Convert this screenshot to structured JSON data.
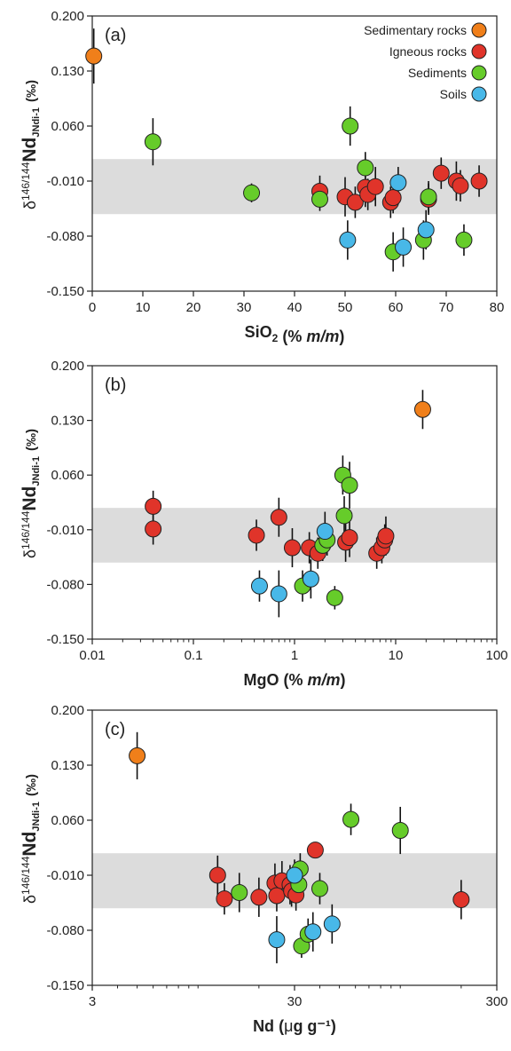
{
  "colors": {
    "sedimentary_rocks": "#f07f1a",
    "igneous_rocks": "#e0342a",
    "sediments": "#66cc2a",
    "soils": "#48b8e8",
    "band": "#dcdcdc"
  },
  "y_title": {
    "prefix": "δ",
    "sup": "146/144",
    "main": "Nd",
    "sub": "JNdi-1",
    "unit": "(‰)"
  },
  "legend": [
    "Sedimentary rocks",
    "Igneous rocks",
    "Sediments",
    "Soils"
  ],
  "chart_data": [
    {
      "type": "scatter",
      "panel_label": "(a)",
      "xlabel": {
        "main": "SiO",
        "sub": "2",
        "rest": " (% ",
        "italic": "m/m",
        "end": ")"
      },
      "xscale": "linear",
      "xlim": [
        0,
        80
      ],
      "xticks": [
        "0",
        "10",
        "20",
        "30",
        "40",
        "50",
        "60",
        "70",
        "80"
      ],
      "ylim": [
        -0.15,
        0.2
      ],
      "yticks": [
        "0.200",
        "0.130",
        "0.060",
        "-0.010",
        "-0.080",
        "-0.150"
      ],
      "band": [
        -0.052,
        0.018
      ],
      "legend": "top-right",
      "series": [
        {
          "name": "Sedimentary rocks",
          "points": [
            [
              0.3,
              0.149,
              0.035
            ]
          ]
        },
        {
          "name": "Igneous rocks",
          "points": [
            [
              45,
              -0.023,
              0.02
            ],
            [
              50,
              -0.03,
              0.025
            ],
            [
              52,
              -0.037,
              0.02
            ],
            [
              54,
              -0.018,
              0.025
            ],
            [
              54.5,
              -0.027,
              0.02
            ],
            [
              56,
              -0.017,
              0.025
            ],
            [
              59,
              -0.037,
              0.02
            ],
            [
              59.5,
              -0.031,
              0.02
            ],
            [
              66.5,
              -0.033,
              0.02
            ],
            [
              69,
              0.0,
              0.02
            ],
            [
              72,
              -0.01,
              0.025
            ],
            [
              72.8,
              -0.016,
              0.02
            ],
            [
              76.5,
              -0.01,
              0.02
            ]
          ]
        },
        {
          "name": "Sediments",
          "points": [
            [
              12,
              0.04,
              0.03
            ],
            [
              31.5,
              -0.025,
              0.012
            ],
            [
              45,
              -0.033,
              0.015
            ],
            [
              51,
              0.06,
              0.025
            ],
            [
              54,
              0.007,
              0.02
            ],
            [
              59.5,
              -0.1,
              0.025
            ],
            [
              65.5,
              -0.085,
              0.025
            ],
            [
              66.5,
              -0.03,
              0.02
            ],
            [
              73.5,
              -0.085,
              0.02
            ]
          ]
        },
        {
          "name": "Soils",
          "points": [
            [
              50.5,
              -0.085,
              0.025
            ],
            [
              60.5,
              -0.012,
              0.02
            ],
            [
              61.5,
              -0.094,
              0.025
            ],
            [
              66,
              -0.072,
              0.025
            ]
          ]
        }
      ]
    },
    {
      "type": "scatter",
      "panel_label": "(b)",
      "xlabel": {
        "main": "MgO",
        "sub": "",
        "rest": " (% ",
        "italic": "m/m",
        "end": ")"
      },
      "xscale": "log",
      "xlim": [
        0.01,
        100
      ],
      "xticks": [
        "0.01",
        "0.1",
        "1",
        "10",
        "100"
      ],
      "ylim": [
        -0.15,
        0.2
      ],
      "yticks": [
        "0.200",
        "0.130",
        "0.060",
        "-0.010",
        "-0.080",
        "-0.150"
      ],
      "band": [
        -0.052,
        0.018
      ],
      "series": [
        {
          "name": "Sedimentary rocks",
          "points": [
            [
              18.5,
              0.144,
              0.025
            ]
          ]
        },
        {
          "name": "Igneous rocks",
          "points": [
            [
              0.04,
              0.02,
              0.02
            ],
            [
              0.04,
              -0.009,
              0.02
            ],
            [
              0.42,
              -0.017,
              0.02
            ],
            [
              0.7,
              0.006,
              0.025
            ],
            [
              0.95,
              -0.033,
              0.025
            ],
            [
              1.4,
              -0.033,
              0.02
            ],
            [
              1.7,
              -0.04,
              0.02
            ],
            [
              3.2,
              -0.026,
              0.025
            ],
            [
              3.5,
              -0.02,
              0.025
            ],
            [
              6.5,
              -0.04,
              0.02
            ],
            [
              7.3,
              -0.033,
              0.02
            ],
            [
              7.8,
              -0.023,
              0.02
            ],
            [
              8,
              -0.018,
              0.025
            ]
          ]
        },
        {
          "name": "Sediments",
          "points": [
            [
              1.2,
              -0.082,
              0.02
            ],
            [
              1.9,
              -0.03,
              0.02
            ],
            [
              2.1,
              -0.023,
              0.02
            ],
            [
              2.5,
              -0.097,
              0.015
            ],
            [
              3,
              0.06,
              0.025
            ],
            [
              3.1,
              0.008,
              0.025
            ],
            [
              3.5,
              0.047,
              0.03
            ]
          ]
        },
        {
          "name": "Soils",
          "points": [
            [
              0.45,
              -0.082,
              0.02
            ],
            [
              0.7,
              -0.092,
              0.03
            ],
            [
              1.45,
              -0.073,
              0.025
            ],
            [
              2,
              -0.012,
              0.025
            ]
          ]
        }
      ]
    },
    {
      "type": "scatter",
      "panel_label": "(c)",
      "xlabel": {
        "main": "Nd",
        "sub": "",
        "rest": " (",
        "italic": "",
        "mu": "μ",
        "end": "g g⁻¹)"
      },
      "xscale": "log",
      "xlim": [
        3,
        300
      ],
      "xticks": [
        "3",
        "30",
        "300"
      ],
      "ylim": [
        -0.15,
        0.2
      ],
      "yticks": [
        "0.200",
        "0.130",
        "0.060",
        "-0.010",
        "-0.080",
        "-0.150"
      ],
      "band": [
        -0.052,
        0.018
      ],
      "series": [
        {
          "name": "Sedimentary rocks",
          "points": [
            [
              5,
              0.142,
              0.03
            ]
          ]
        },
        {
          "name": "Igneous rocks",
          "points": [
            [
              12.5,
              -0.01,
              0.025
            ],
            [
              13.5,
              -0.04,
              0.02
            ],
            [
              20,
              -0.038,
              0.025
            ],
            [
              24,
              -0.02,
              0.025
            ],
            [
              24.5,
              -0.036,
              0.02
            ],
            [
              26,
              -0.017,
              0.025
            ],
            [
              28.5,
              -0.022,
              0.025
            ],
            [
              29,
              -0.03,
              0.02
            ],
            [
              30.5,
              -0.035,
              0.02
            ],
            [
              38,
              0.022,
              0.01
            ],
            [
              200,
              -0.041,
              0.025
            ]
          ]
        },
        {
          "name": "Sediments",
          "points": [
            [
              16,
              -0.032,
              0.025
            ],
            [
              31.5,
              -0.022,
              0.02
            ],
            [
              32,
              -0.002,
              0.02
            ],
            [
              32.5,
              -0.1,
              0.015
            ],
            [
              35,
              -0.085,
              0.02
            ],
            [
              40,
              -0.027,
              0.02
            ],
            [
              57,
              0.061,
              0.02
            ],
            [
              100,
              0.047,
              0.03
            ]
          ]
        },
        {
          "name": "Soils",
          "points": [
            [
              24.5,
              -0.092,
              0.03
            ],
            [
              30,
              -0.01,
              0.02
            ],
            [
              37,
              -0.082,
              0.025
            ],
            [
              46,
              -0.072,
              0.025
            ]
          ]
        }
      ]
    }
  ]
}
